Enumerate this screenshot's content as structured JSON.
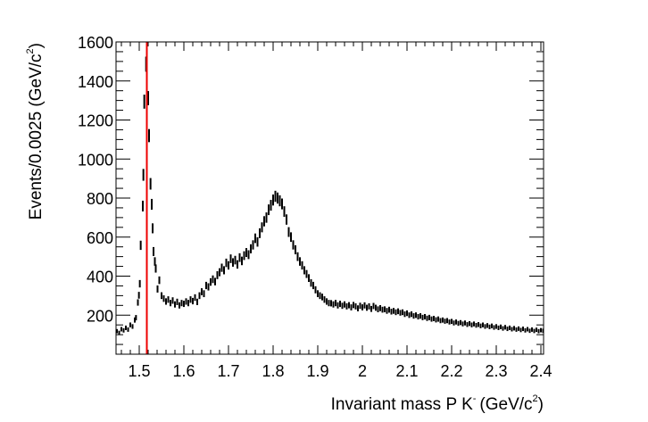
{
  "chart_data": {
    "type": "scatter",
    "style": "histogram-error-bars",
    "title": "",
    "xlabel": "Invariant mass P K",
    "xlabel_superscript": "-",
    "xlabel_unit": "(GeV/c",
    "xlabel_unit_sup": "2",
    "xlabel_unit_close": ")",
    "ylabel": "Events/0.0025 (GeV/c",
    "ylabel_sup": "2",
    "ylabel_close": ")",
    "xlim": [
      1.448,
      2.406
    ],
    "ylim": [
      0,
      1600
    ],
    "x_ticks": [
      "1.5",
      "1.6",
      "1.7",
      "1.8",
      "1.9",
      "2",
      "2.1",
      "2.2",
      "2.3",
      "2.4"
    ],
    "y_ticks": [
      "200",
      "400",
      "600",
      "800",
      "1000",
      "1200",
      "1400",
      "1600"
    ],
    "grid": false,
    "marker_color": "#000000",
    "reference_line": {
      "x": 1.517,
      "color": "#ee0000"
    },
    "points": [
      [
        1.45,
        118
      ],
      [
        1.455,
        110
      ],
      [
        1.46,
        128
      ],
      [
        1.465,
        122
      ],
      [
        1.47,
        135
      ],
      [
        1.475,
        126
      ],
      [
        1.48,
        150
      ],
      [
        1.485,
        142
      ],
      [
        1.49,
        175
      ],
      [
        1.4927,
        187
      ],
      [
        1.497,
        265
      ],
      [
        1.4993,
        302
      ],
      [
        1.5013,
        361
      ],
      [
        1.5033,
        558
      ],
      [
        1.508,
        759
      ],
      [
        1.5093,
        919
      ],
      [
        1.5113,
        1294
      ],
      [
        1.5154,
        1486
      ],
      [
        1.52,
        1312
      ],
      [
        1.522,
        1120
      ],
      [
        1.5253,
        873
      ],
      [
        1.528,
        768
      ],
      [
        1.53,
        645
      ],
      [
        1.532,
        526
      ],
      [
        1.535,
        475
      ],
      [
        1.537,
        439
      ],
      [
        1.541,
        334
      ],
      [
        1.545,
        379
      ],
      [
        1.55,
        300
      ],
      [
        1.555,
        285
      ],
      [
        1.56,
        270
      ],
      [
        1.565,
        280
      ],
      [
        1.57,
        262
      ],
      [
        1.575,
        275
      ],
      [
        1.58,
        255
      ],
      [
        1.585,
        268
      ],
      [
        1.59,
        250
      ],
      [
        1.595,
        262
      ],
      [
        1.6,
        258
      ],
      [
        1.605,
        270
      ],
      [
        1.61,
        262
      ],
      [
        1.615,
        280
      ],
      [
        1.62,
        272
      ],
      [
        1.625,
        290
      ],
      [
        1.63,
        268
      ],
      [
        1.635,
        300
      ],
      [
        1.64,
        320
      ],
      [
        1.645,
        310
      ],
      [
        1.65,
        352
      ],
      [
        1.655,
        345
      ],
      [
        1.66,
        370
      ],
      [
        1.665,
        384
      ],
      [
        1.67,
        372
      ],
      [
        1.675,
        405
      ],
      [
        1.68,
        420
      ],
      [
        1.685,
        443
      ],
      [
        1.69,
        430
      ],
      [
        1.695,
        468
      ],
      [
        1.7,
        455
      ],
      [
        1.705,
        489
      ],
      [
        1.71,
        470
      ],
      [
        1.715,
        482
      ],
      [
        1.72,
        460
      ],
      [
        1.725,
        495
      ],
      [
        1.73,
        478
      ],
      [
        1.735,
        505
      ],
      [
        1.74,
        521
      ],
      [
        1.745,
        510
      ],
      [
        1.75,
        540
      ],
      [
        1.755,
        560
      ],
      [
        1.76,
        594
      ],
      [
        1.765,
        575
      ],
      [
        1.77,
        620
      ],
      [
        1.775,
        650
      ],
      [
        1.78,
        681
      ],
      [
        1.785,
        700
      ],
      [
        1.79,
        740
      ],
      [
        1.795,
        763
      ],
      [
        1.8,
        790
      ],
      [
        1.805,
        809
      ],
      [
        1.81,
        800
      ],
      [
        1.815,
        786
      ],
      [
        1.82,
        770
      ],
      [
        1.825,
        731
      ],
      [
        1.83,
        690
      ],
      [
        1.835,
        626
      ],
      [
        1.84,
        600
      ],
      [
        1.845,
        560
      ],
      [
        1.85,
        535
      ],
      [
        1.855,
        500
      ],
      [
        1.86,
        475
      ],
      [
        1.865,
        455
      ],
      [
        1.87,
        430
      ],
      [
        1.875,
        411
      ],
      [
        1.88,
        390
      ],
      [
        1.885,
        365
      ],
      [
        1.89,
        352
      ],
      [
        1.895,
        330
      ],
      [
        1.9,
        310
      ],
      [
        1.905,
        300
      ],
      [
        1.91,
        293
      ],
      [
        1.915,
        280
      ],
      [
        1.92,
        270
      ],
      [
        1.925,
        262
      ],
      [
        1.93,
        261
      ],
      [
        1.935,
        255
      ],
      [
        1.94,
        262
      ],
      [
        1.945,
        250
      ],
      [
        1.95,
        258
      ],
      [
        1.955,
        248
      ],
      [
        1.96,
        255
      ],
      [
        1.965,
        245
      ],
      [
        1.97,
        251
      ],
      [
        1.975,
        240
      ],
      [
        1.98,
        252
      ],
      [
        1.985,
        245
      ],
      [
        1.99,
        235
      ],
      [
        1.995,
        248
      ],
      [
        2.0,
        240
      ],
      [
        2.005,
        250
      ],
      [
        2.01,
        238
      ],
      [
        2.015,
        245
      ],
      [
        2.02,
        232
      ],
      [
        2.025,
        247
      ],
      [
        2.03,
        238
      ],
      [
        2.035,
        230
      ],
      [
        2.04,
        236
      ],
      [
        2.045,
        228
      ],
      [
        2.05,
        230
      ],
      [
        2.055,
        222
      ],
      [
        2.06,
        228
      ],
      [
        2.065,
        218
      ],
      [
        2.07,
        222
      ],
      [
        2.075,
        215
      ],
      [
        2.08,
        220
      ],
      [
        2.085,
        212
      ],
      [
        2.09,
        215
      ],
      [
        2.095,
        205
      ],
      [
        2.1,
        210
      ],
      [
        2.105,
        200
      ],
      [
        2.11,
        205
      ],
      [
        2.115,
        196
      ],
      [
        2.12,
        200
      ],
      [
        2.125,
        192
      ],
      [
        2.13,
        196
      ],
      [
        2.135,
        188
      ],
      [
        2.14,
        192
      ],
      [
        2.145,
        184
      ],
      [
        2.15,
        188
      ],
      [
        2.155,
        180
      ],
      [
        2.16,
        183
      ],
      [
        2.165,
        176
      ],
      [
        2.17,
        180
      ],
      [
        2.175,
        172
      ],
      [
        2.18,
        175
      ],
      [
        2.185,
        169
      ],
      [
        2.19,
        172
      ],
      [
        2.195,
        165
      ],
      [
        2.2,
        168
      ],
      [
        2.205,
        160
      ],
      [
        2.21,
        165
      ],
      [
        2.215,
        158
      ],
      [
        2.22,
        162
      ],
      [
        2.225,
        155
      ],
      [
        2.23,
        160
      ],
      [
        2.235,
        152
      ],
      [
        2.24,
        157
      ],
      [
        2.245,
        150
      ],
      [
        2.25,
        155
      ],
      [
        2.255,
        148
      ],
      [
        2.26,
        152
      ],
      [
        2.265,
        145
      ],
      [
        2.27,
        150
      ],
      [
        2.275,
        142
      ],
      [
        2.28,
        147
      ],
      [
        2.285,
        140
      ],
      [
        2.29,
        145
      ],
      [
        2.295,
        137
      ],
      [
        2.3,
        142
      ],
      [
        2.305,
        135
      ],
      [
        2.31,
        140
      ],
      [
        2.315,
        132
      ],
      [
        2.32,
        138
      ],
      [
        2.325,
        130
      ],
      [
        2.33,
        135
      ],
      [
        2.335,
        128
      ],
      [
        2.34,
        133
      ],
      [
        2.345,
        126
      ],
      [
        2.35,
        131
      ],
      [
        2.355,
        124
      ],
      [
        2.36,
        130
      ],
      [
        2.365,
        122
      ],
      [
        2.37,
        128
      ],
      [
        2.375,
        120
      ],
      [
        2.38,
        126
      ],
      [
        2.385,
        119
      ],
      [
        2.39,
        125
      ],
      [
        2.395,
        118
      ],
      [
        2.4,
        123
      ],
      [
        2.405,
        120
      ]
    ]
  }
}
